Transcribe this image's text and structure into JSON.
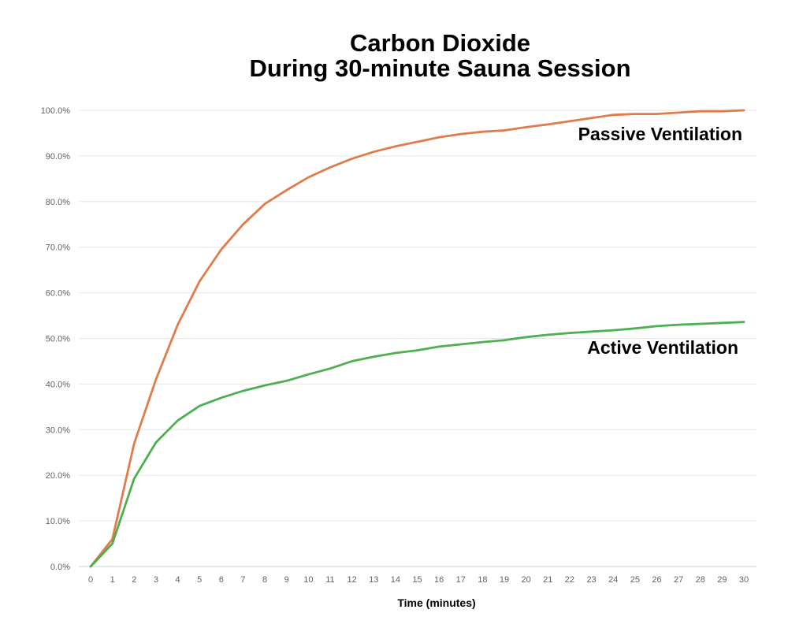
{
  "chart_data": {
    "type": "line",
    "title_line1": "Carbon Dioxide",
    "title_line2": "During 30-minute Sauna Session",
    "xlabel": "Time (minutes)",
    "ylabel": "",
    "x": [
      0,
      1,
      2,
      3,
      4,
      5,
      6,
      7,
      8,
      9,
      10,
      11,
      12,
      13,
      14,
      15,
      16,
      17,
      18,
      19,
      20,
      21,
      22,
      23,
      24,
      25,
      26,
      27,
      28,
      29,
      30
    ],
    "ylim": [
      0,
      100
    ],
    "yticks": [
      "0.0%",
      "10.0%",
      "20.0%",
      "30.0%",
      "40.0%",
      "50.0%",
      "60.0%",
      "70.0%",
      "80.0%",
      "90.0%",
      "100.0%"
    ],
    "grid": true,
    "series": [
      {
        "name": "Passive Ventilation",
        "color": "#e07b4a",
        "values": [
          0,
          6,
          27,
          41,
          53,
          62.5,
          69.5,
          75,
          79.5,
          82.5,
          85.3,
          87.5,
          89.4,
          90.9,
          92.1,
          93.1,
          94.1,
          94.8,
          95.3,
          95.6,
          96.3,
          96.9,
          97.6,
          98.3,
          99.0,
          99.2,
          99.2,
          99.5,
          99.8,
          99.8,
          100
        ]
      },
      {
        "name": "Active Ventilation",
        "color": "#4caf50",
        "values": [
          0,
          5,
          19.3,
          27.2,
          32,
          35.2,
          37,
          38.5,
          39.7,
          40.7,
          42.1,
          43.4,
          45,
          46,
          46.8,
          47.4,
          48.2,
          48.7,
          49.2,
          49.6,
          50.3,
          50.8,
          51.2,
          51.5,
          51.8,
          52.2,
          52.7,
          53,
          53.2,
          53.4,
          53.6
        ]
      }
    ]
  }
}
